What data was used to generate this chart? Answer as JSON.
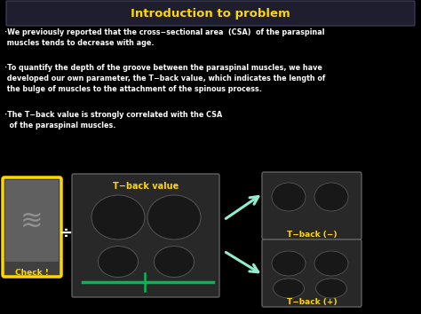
{
  "background_color": "#000000",
  "title_text": "Introduction to problem",
  "title_text_color": "#FFD700",
  "title_bar_color": "#1a1a1a",
  "bullet1": "·We previously reported that the cross−sectional area  (CSA)  of the paraspinal\n muscles tends to decrease with age.",
  "bullet2": "·To quantify the depth of the groove between the paraspinal muscles, we have\n developed our own parameter, the T−back value, which indicates the length of\n the bulge of muscles to the attachment of the spinous process.",
  "bullet3": "·The T−back value is strongly correlated with the CSA\n  of the paraspinal muscles.",
  "text_color": "#FFFFFF",
  "label_check": "Check !",
  "label_tback_value": "T−back value",
  "label_tback_neg": "T−back (−)",
  "label_tback_pos": "T−back (+)",
  "label_color": "#FFD700",
  "divide_symbol": "÷",
  "arrow_color": "#90EED0",
  "check_border_color": "#FFD700",
  "figsize": [
    4.74,
    3.54
  ],
  "dpi": 100
}
